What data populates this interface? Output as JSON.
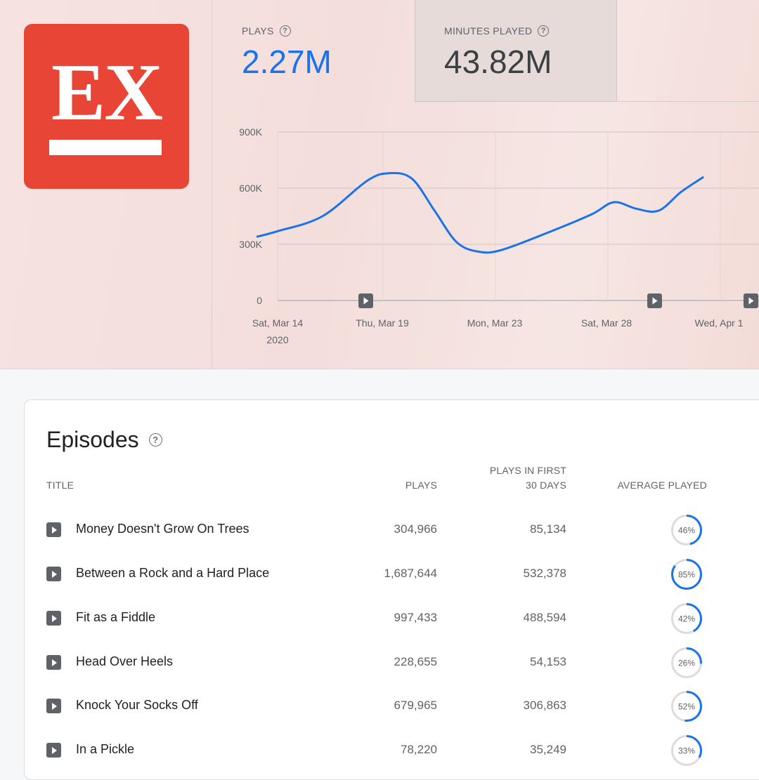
{
  "header": {
    "logo_text": "EX",
    "stats": [
      {
        "label": "PLAYS",
        "value": "2.27M"
      },
      {
        "label": "MINUTES PLAYED",
        "value": "43.82M"
      }
    ]
  },
  "chart_data": {
    "type": "line",
    "x": [
      "2020-03-14",
      "2020-03-16",
      "2020-03-18",
      "2020-03-19",
      "2020-03-20",
      "2020-03-21",
      "2020-03-22",
      "2020-03-23",
      "2020-03-24",
      "2020-03-26",
      "2020-03-28",
      "2020-03-29",
      "2020-03-30",
      "2020-03-31",
      "2020-04-01",
      "2020-04-02"
    ],
    "values": [
      370000,
      450000,
      640000,
      680000,
      650000,
      480000,
      310000,
      260000,
      270000,
      360000,
      460000,
      525000,
      490000,
      480000,
      580000,
      660000
    ],
    "xtick_labels": [
      "Sat, Mar 14",
      "Thu, Mar 19",
      "Mon, Mar 23",
      "Sat, Mar 28",
      "Wed, Apr 1"
    ],
    "year_label": "2020",
    "ytick_labels": [
      "900K",
      "600K",
      "300K",
      "0"
    ],
    "ylim": [
      0,
      900000
    ],
    "grid": true,
    "color": "#1a73e8",
    "episode_markers": [
      "2020-03-19",
      "2020-03-30",
      "2020-04-02"
    ]
  },
  "episodes": {
    "title": "Episodes",
    "columns": {
      "title": "TITLE",
      "plays": "PLAYS",
      "first30_line1": "PLAYS IN FIRST",
      "first30_line2": "30 DAYS",
      "avg": "AVERAGE PLAYED"
    },
    "rows": [
      {
        "title": "Money Doesn't Grow On Trees",
        "plays": "304,966",
        "first30": "85,134",
        "avg": "46%",
        "avg_value": 46
      },
      {
        "title": "Between a Rock and a Hard Place",
        "plays": "1,687,644",
        "first30": "532,378",
        "avg": "85%",
        "avg_value": 85
      },
      {
        "title": "Fit as a Fiddle",
        "plays": "997,433",
        "first30": "488,594",
        "avg": "42%",
        "avg_value": 42
      },
      {
        "title": "Head Over Heels",
        "plays": "228,655",
        "first30": "54,153",
        "avg": "26%",
        "avg_value": 26
      },
      {
        "title": "Knock Your Socks Off",
        "plays": "679,965",
        "first30": "306,863",
        "avg": "52%",
        "avg_value": 52
      },
      {
        "title": "In a Pickle",
        "plays": "78,220",
        "first30": "35,249",
        "avg": "33%",
        "avg_value": 33
      }
    ]
  }
}
